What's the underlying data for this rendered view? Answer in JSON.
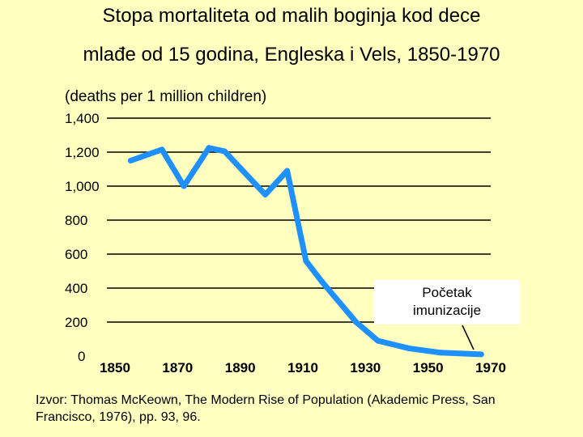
{
  "title_line1": "Stopa mortaliteta od malih boginja kod dece",
  "title_line2": "mlađe od 15 godina, Engleska i Vels, 1850-1970",
  "source": "Izvor: Thomas McKeown, The Modern Rise of Population (Akademic Press, San Francisco, 1976), pp. 93, 96.",
  "annotation": {
    "line1": "Početak",
    "line2": "imunizacije"
  },
  "colors": {
    "background": "#ffffc0",
    "line": "#1e90ff",
    "grid": "#000000"
  },
  "chart_data": {
    "type": "line",
    "title": "",
    "ylabel": "(deaths per 1 million children)",
    "xlabel": "",
    "xlim": [
      1850,
      1970
    ],
    "ylim": [
      0,
      1400
    ],
    "x_ticks": [
      1850,
      1870,
      1890,
      1910,
      1930,
      1950,
      1970
    ],
    "x_tick_labels": [
      "1850",
      "1870",
      "1890",
      "1910",
      "1930",
      "1950",
      "1970"
    ],
    "y_ticks": [
      0,
      200,
      400,
      600,
      800,
      1000,
      1200,
      1400
    ],
    "y_tick_labels": [
      "0",
      "200",
      "400",
      "600",
      "800",
      "1,000",
      "1,200",
      "1,400"
    ],
    "grid": true,
    "series": [
      {
        "x": [
          1855,
          1865,
          1872,
          1880,
          1885,
          1898,
          1905,
          1911,
          1916,
          1927,
          1934,
          1944,
          1954,
          1967
        ],
        "y": [
          1150,
          1215,
          1000,
          1225,
          1205,
          950,
          1090,
          560,
          440,
          200,
          90,
          45,
          20,
          10
        ]
      }
    ]
  }
}
